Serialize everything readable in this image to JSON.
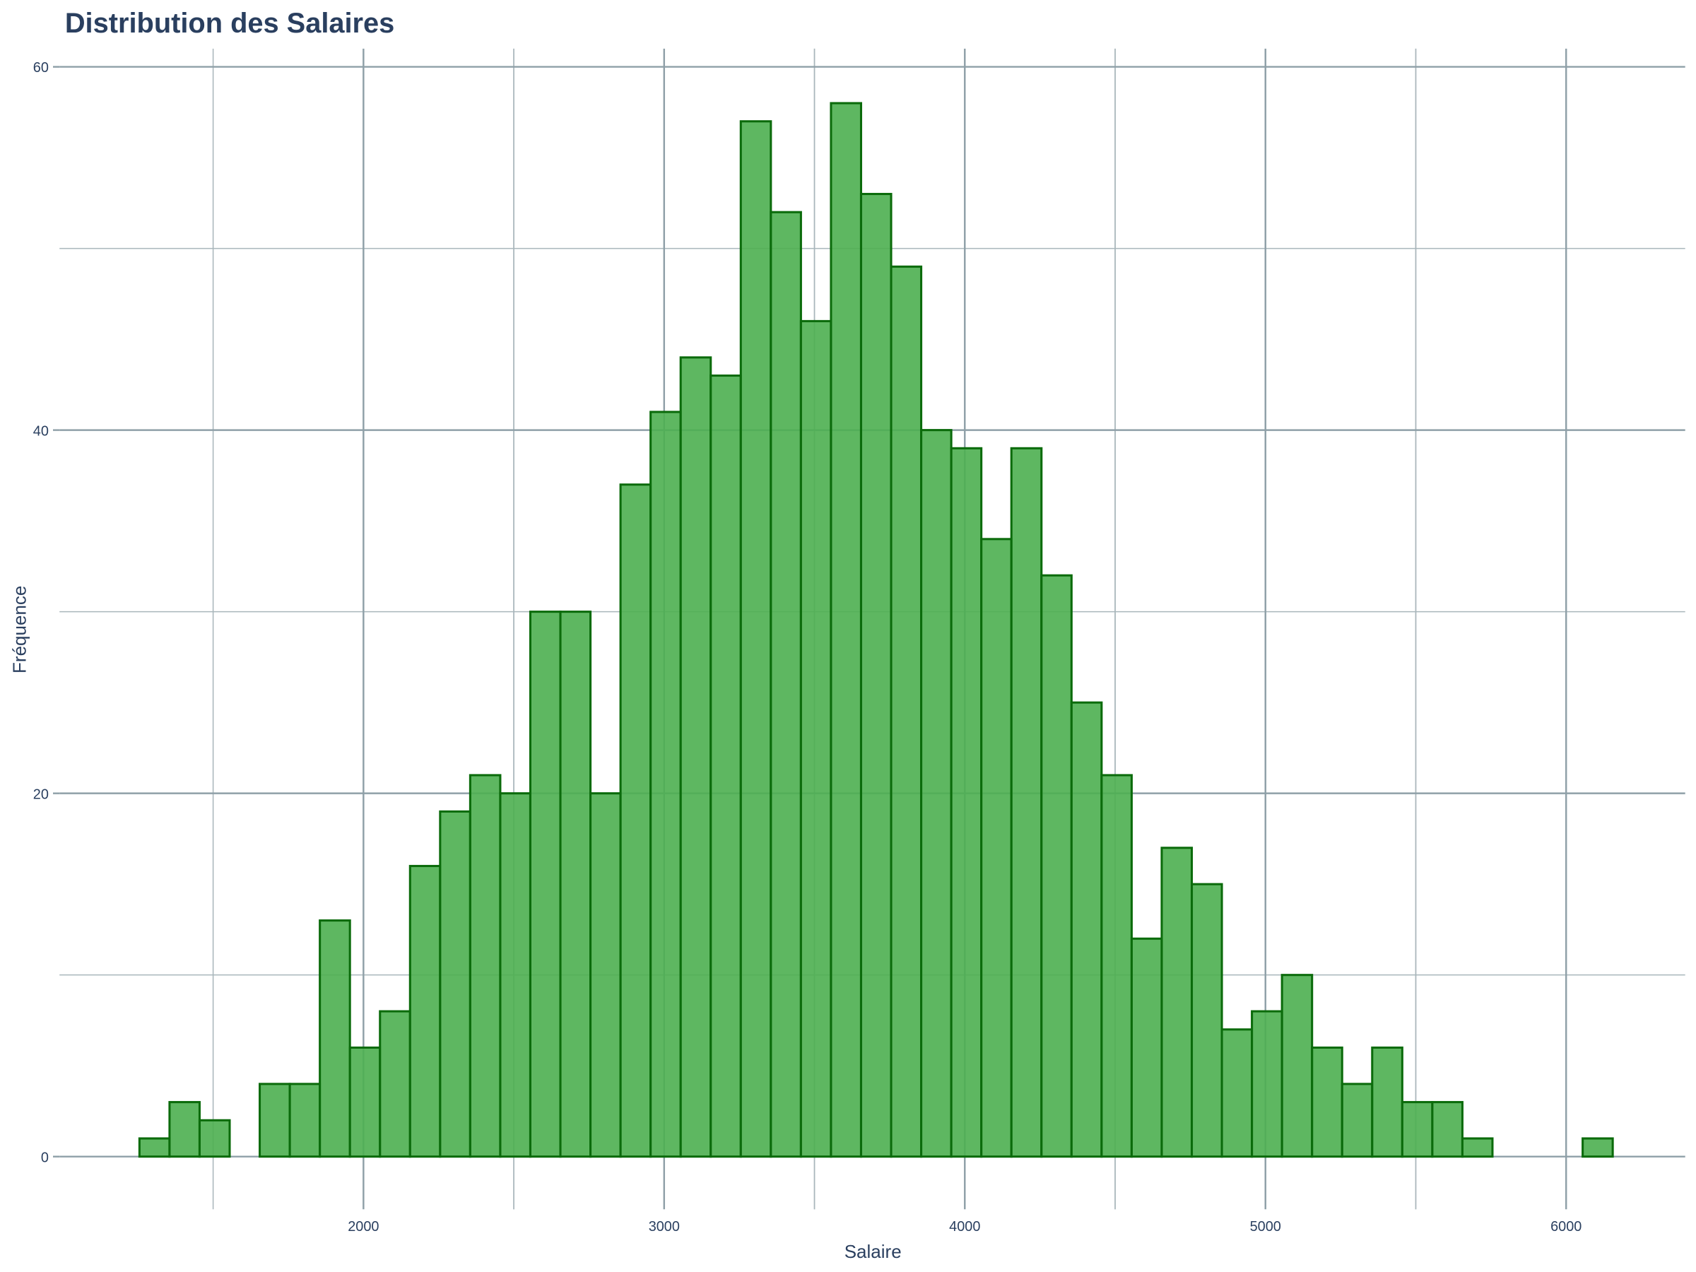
{
  "chart_data": {
    "type": "histogram",
    "title": "Distribution des Salaires",
    "x_label": "Salaire",
    "y_label": "Fréquence",
    "bins": [
      1255,
      1355,
      1455,
      1555,
      1655,
      1755,
      1855,
      1955,
      2055,
      2155,
      2255,
      2355,
      2455,
      2555,
      2655,
      2755,
      2855,
      2955,
      3055,
      3155,
      3255,
      3355,
      3455,
      3555,
      3655,
      3755,
      3855,
      3955,
      4055,
      4155,
      4255,
      4355,
      4455,
      4555,
      4655,
      4755,
      4855,
      4955,
      5055,
      5155,
      5255,
      5355,
      5455,
      5555,
      5655,
      5755,
      5855,
      5955,
      6055,
      6155
    ],
    "values": [
      1,
      3,
      2,
      0,
      4,
      4,
      13,
      6,
      8,
      16,
      19,
      21,
      20,
      30,
      30,
      20,
      37,
      41,
      44,
      43,
      57,
      52,
      46,
      58,
      53,
      49,
      40,
      39,
      34,
      39,
      32,
      25,
      21,
      12,
      17,
      15,
      7,
      8,
      10,
      6,
      4,
      6,
      3,
      3,
      1,
      0,
      0,
      0,
      1
    ],
    "color": "#4caf50",
    "edge_color": "#0b6b0b",
    "xlim": [
      989,
      6396
    ],
    "ylim": [
      -2.9,
      61
    ],
    "xticks": [
      2000,
      3000,
      4000,
      5000,
      6000
    ],
    "yticks": [
      0,
      20,
      40,
      60
    ],
    "grid": true
  }
}
